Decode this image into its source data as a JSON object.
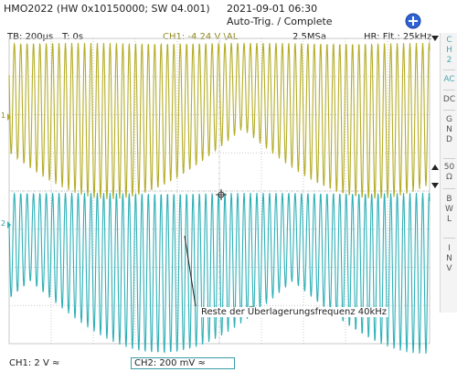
{
  "device": {
    "model_info": "HMO2022 (HW 0x10150000; SW 04.001)",
    "datetime": "2021-09-01 06:30",
    "trigger_status": "Auto-Trig. / Complete"
  },
  "status_bar": {
    "timebase": "TB: 200µs",
    "trigger_time": "T: 0s",
    "trigger_info": "CH1: -4.24 V \\AL",
    "sample_rate": "2.5MSa",
    "hr_filter": "HR: Flt.: 25kHz"
  },
  "sidebar": {
    "channel_label": [
      "C",
      "H",
      "2"
    ],
    "items": [
      "AC",
      "DC",
      "G N D",
      "50 Ω",
      "B W L",
      "I N V"
    ],
    "selected": "AC"
  },
  "bottom_bar": {
    "ch1_scale": "CH1: 2 V ≈",
    "ch2_scale": "CH2: 200 mV ≈"
  },
  "annotation": "Reste der Überlagerungsfrequenz 40kHz",
  "markers": {
    "ch1": "1",
    "ch2": "2"
  },
  "colors": {
    "ch1": "#b4ad28",
    "ch2": "#2fb0b7",
    "grid": "#c9c9c9",
    "accent": "#3a6fd8"
  }
}
